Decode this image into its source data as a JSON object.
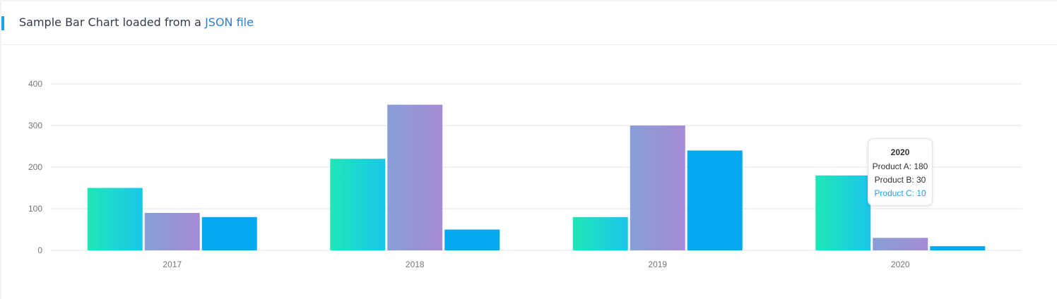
{
  "header": {
    "title_prefix": "Sample Bar Chart loaded from a ",
    "title_link": "JSON file"
  },
  "chart_data": {
    "type": "bar",
    "categories": [
      "2017",
      "2018",
      "2019",
      "2020"
    ],
    "series": [
      {
        "name": "Product A",
        "values": [
          150,
          220,
          80,
          180
        ]
      },
      {
        "name": "Product B",
        "values": [
          90,
          350,
          300,
          30
        ]
      },
      {
        "name": "Product C",
        "values": [
          80,
          50,
          240,
          10
        ]
      }
    ],
    "ylim": [
      0,
      400
    ],
    "yticks": [
      0,
      100,
      200,
      300,
      400
    ],
    "grid": true,
    "colors": {
      "Product A": [
        "#1ee7b8",
        "#1bc6ea"
      ],
      "Product B": [
        "#879fd6",
        "#a68bd6"
      ],
      "Product C": [
        "#06a8f2",
        "#06a8f2"
      ]
    }
  },
  "tooltip": {
    "title": "2020",
    "rows": [
      {
        "label": "Product A: 180"
      },
      {
        "label": "Product B: 30"
      },
      {
        "label": "Product C: 10"
      }
    ]
  }
}
